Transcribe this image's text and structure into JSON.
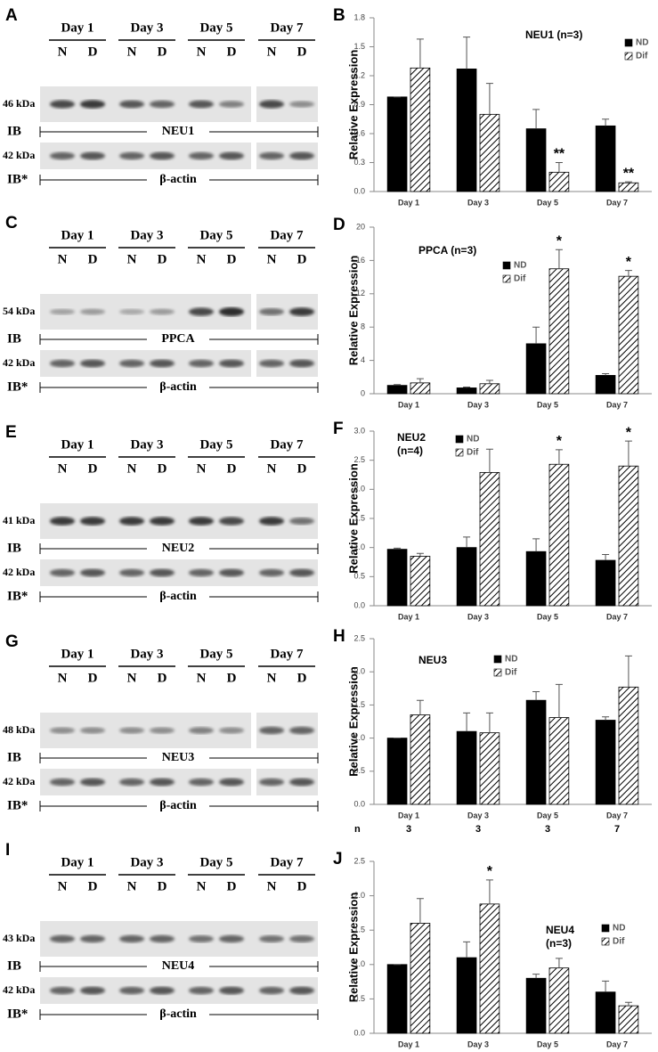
{
  "blots": [
    {
      "letter": "A",
      "days": [
        "Day 1",
        "Day 3",
        "Day 5",
        "Day 7"
      ],
      "lanes": [
        "N",
        "D"
      ],
      "target_kda": "46 kDa",
      "control_kda": "42 kDa",
      "ib": "IB",
      "target": "NEU1",
      "ib_control": "IB*",
      "control": "β-actin"
    },
    {
      "letter": "C",
      "days": [
        "Day 1",
        "Day 3",
        "Day 5",
        "Day 7"
      ],
      "lanes": [
        "N",
        "D"
      ],
      "target_kda": "54 kDa",
      "control_kda": "42 kDa",
      "ib": "IB",
      "target": "PPCA",
      "ib_control": "IB*",
      "control": "β-actin"
    },
    {
      "letter": "E",
      "days": [
        "Day 1",
        "Day 3",
        "Day 5",
        "Day 7"
      ],
      "lanes": [
        "N",
        "D"
      ],
      "target_kda": "41 kDa",
      "control_kda": "42 kDa",
      "ib": "IB",
      "target": "NEU2",
      "ib_control": "IB*",
      "control": "β-actin"
    },
    {
      "letter": "G",
      "days": [
        "Day 1",
        "Day 3",
        "Day 5",
        "Day 7"
      ],
      "lanes": [
        "N",
        "D"
      ],
      "target_kda": "48 kDa",
      "control_kda": "42 kDa",
      "ib": "IB",
      "target": "NEU3",
      "ib_control": "IB*",
      "control": "β-actin"
    },
    {
      "letter": "I",
      "days": [
        "Day 1",
        "Day 3",
        "Day 5",
        "Day 7"
      ],
      "lanes": [
        "N",
        "D"
      ],
      "target_kda": "43 kDa",
      "control_kda": "42 kDa",
      "ib": "IB",
      "target": "NEU4",
      "ib_control": "IB*",
      "control": "β-actin"
    }
  ],
  "chart_data": [
    {
      "type": "bar",
      "letter": "B",
      "title": "NEU1 (n=3)",
      "ylabel": "Relative Expression",
      "categories": [
        "Day 1",
        "Day 3",
        "Day 5",
        "Day 7"
      ],
      "ylim": [
        0,
        1.8
      ],
      "yticks": [
        {
          "value": 0,
          "label": "0.0"
        },
        0.3,
        0.6,
        0.9,
        1.2,
        1.5,
        1.8
      ],
      "series": [
        {
          "name": "ND",
          "color": "#000000",
          "fill": "solid",
          "values": [
            0.98,
            1.27,
            0.65,
            0.68
          ],
          "errors": [
            0,
            0.33,
            0.2,
            0.07
          ]
        },
        {
          "name": "Dif",
          "color": "#000000",
          "fill": "hatch",
          "values": [
            1.28,
            0.8,
            0.2,
            0.09
          ],
          "errors": [
            0.3,
            0.32,
            0.1,
            0.01
          ],
          "value_annotations": [
            null,
            null,
            "**",
            "**"
          ]
        }
      ]
    },
    {
      "type": "bar",
      "letter": "D",
      "title": "PPCA (n=3)",
      "ylabel": "Relative Expression",
      "categories": [
        "Day 1",
        "Day 3",
        "Day 5",
        "Day 7"
      ],
      "ylim": [
        0,
        20
      ],
      "yticks": [
        0,
        4,
        8,
        12,
        16,
        20
      ],
      "series": [
        {
          "name": "ND",
          "color": "#000000",
          "fill": "solid",
          "values": [
            1.0,
            0.7,
            6.0,
            2.2
          ],
          "errors": [
            0.1,
            0.1,
            2.0,
            0.2
          ]
        },
        {
          "name": "Dif",
          "color": "#000000",
          "fill": "hatch",
          "values": [
            1.3,
            1.2,
            15.0,
            14.1
          ],
          "errors": [
            0.5,
            0.4,
            2.3,
            0.7
          ],
          "value_annotations": [
            null,
            null,
            "*",
            "*"
          ]
        }
      ]
    },
    {
      "type": "bar",
      "letter": "F",
      "title": "NEU2",
      "subtitle": "(n=4)",
      "ylabel": "Relative Expression",
      "categories": [
        "Day 1",
        "Day 3",
        "Day 5",
        "Day 7"
      ],
      "ylim": [
        0,
        3
      ],
      "yticks": [
        {
          "value": 0,
          "label": "0.0"
        },
        0.5,
        {
          "value": 1,
          "label": "1.0"
        },
        1.5,
        {
          "value": 2,
          "label": "2.0"
        },
        2.5,
        {
          "value": 3,
          "label": "3.0"
        }
      ],
      "series": [
        {
          "name": "ND",
          "color": "#000000",
          "fill": "solid",
          "values": [
            0.97,
            1.0,
            0.93,
            0.78
          ],
          "errors": [
            0.02,
            0.18,
            0.22,
            0.1
          ]
        },
        {
          "name": "Dif",
          "color": "#000000",
          "fill": "hatch",
          "values": [
            0.85,
            2.29,
            2.43,
            2.4
          ],
          "errors": [
            0.05,
            0.4,
            0.25,
            0.43
          ],
          "value_annotations": [
            null,
            null,
            "*",
            "*"
          ]
        }
      ]
    },
    {
      "type": "bar",
      "letter": "H",
      "title": "NEU3",
      "ylabel": "Relative Expression",
      "categories": [
        "Day 1",
        "Day 3",
        "Day 5",
        "Day 7"
      ],
      "n_label": "n",
      "n_values": [
        3,
        3,
        3,
        7
      ],
      "ylim": [
        0,
        2.5
      ],
      "yticks": [
        {
          "value": 0,
          "label": "0.0"
        },
        0.5,
        {
          "value": 1,
          "label": "1.0"
        },
        1.5,
        {
          "value": 2,
          "label": "2.0"
        },
        2.5
      ],
      "series": [
        {
          "name": "ND",
          "color": "#000000",
          "fill": "solid",
          "values": [
            1.0,
            1.1,
            1.57,
            1.27
          ],
          "errors": [
            0,
            0.28,
            0.13,
            0.05
          ]
        },
        {
          "name": "Dif",
          "color": "#000000",
          "fill": "hatch",
          "values": [
            1.35,
            1.08,
            1.31,
            1.77
          ],
          "errors": [
            0.22,
            0.3,
            0.5,
            0.47
          ]
        }
      ]
    },
    {
      "type": "bar",
      "letter": "J",
      "title": "NEU4",
      "subtitle": "(n=3)",
      "ylabel": "Relative Expression",
      "categories": [
        "Day 1",
        "Day 3",
        "Day 5",
        "Day 7"
      ],
      "ylim": [
        0,
        2.5
      ],
      "yticks": [
        {
          "value": 0,
          "label": "0.0"
        },
        0.5,
        {
          "value": 1,
          "label": "1.0"
        },
        1.5,
        {
          "value": 2,
          "label": "2.0"
        },
        2.5
      ],
      "series": [
        {
          "name": "ND",
          "color": "#000000",
          "fill": "solid",
          "values": [
            1.0,
            1.1,
            0.8,
            0.6
          ],
          "errors": [
            0,
            0.23,
            0.06,
            0.16
          ]
        },
        {
          "name": "Dif",
          "color": "#000000",
          "fill": "hatch",
          "values": [
            1.6,
            1.88,
            0.95,
            0.4
          ],
          "errors": [
            0.36,
            0.35,
            0.14,
            0.05
          ],
          "value_annotations": [
            null,
            "*",
            null,
            null
          ]
        }
      ]
    }
  ]
}
